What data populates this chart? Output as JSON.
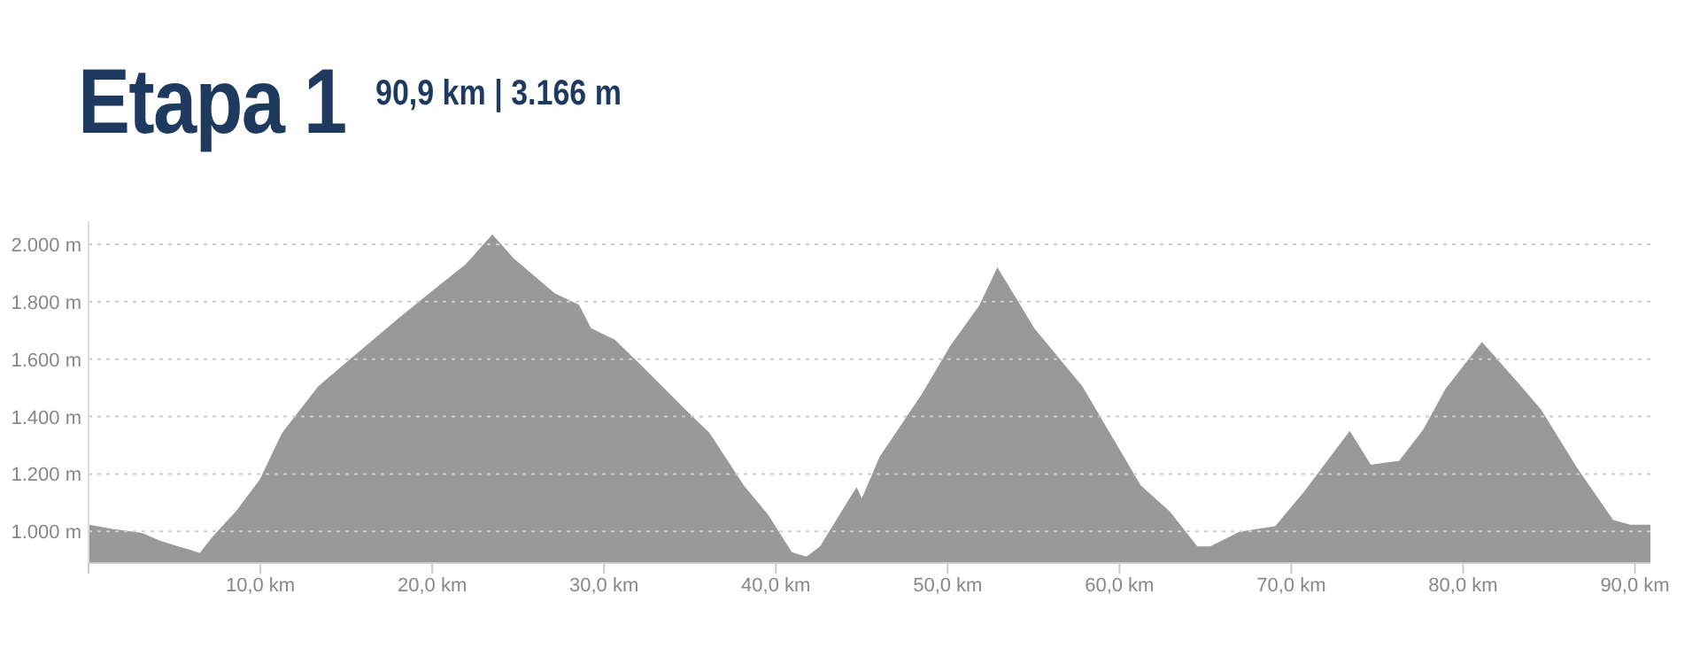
{
  "chart_data": {
    "type": "area",
    "title": "Etapa 1",
    "subtitle": "90,9 km | 3.166 m",
    "x": [
      0,
      1.4,
      3.1,
      4.1,
      5.2,
      5.8,
      6.5,
      7.2,
      8.6,
      10.0,
      11.3,
      13.4,
      14.8,
      16.2,
      18.2,
      20.3,
      22.0,
      23.5,
      24.7,
      27.1,
      28.5,
      29.2,
      30.6,
      32.0,
      34.7,
      36.1,
      38.1,
      39.5,
      40.9,
      41.8,
      42.6,
      44.3,
      44.7,
      45.0,
      46.1,
      48.5,
      50.2,
      51.9,
      52.9,
      55.0,
      57.8,
      61.2,
      62.9,
      64.5,
      65.3,
      67.0,
      69.1,
      70.8,
      73.4,
      74.6,
      76.3,
      77.7,
      79.0,
      81.1,
      83.2,
      84.5,
      86.6,
      88.7,
      89.7,
      90.9
    ],
    "series": [
      {
        "color": "#999999",
        "values": [
          1020,
          1006,
          992,
          966,
          945,
          935,
          921,
          976,
          1067,
          1178,
          1341,
          1503,
          1574,
          1645,
          1746,
          1848,
          1929,
          2030,
          1949,
          1827,
          1787,
          1706,
          1665,
          1584,
          1422,
          1341,
          1158,
          1057,
          925,
          909,
          945,
          1110,
          1148,
          1107,
          1260,
          1473,
          1645,
          1787,
          1913,
          1706,
          1503,
          1158,
          1067,
          945,
          945,
          996,
          1016,
          1138,
          1345,
          1229,
          1243,
          1351,
          1493,
          1655,
          1513,
          1422,
          1219,
          1037,
          1020,
          1020
        ]
      }
    ],
    "xlim": [
      0,
      90.9
    ],
    "xticks": [
      {
        "value": 0,
        "label": null
      },
      {
        "value": 10,
        "label": "10,0 km"
      },
      {
        "value": 20,
        "label": "20,0 km"
      },
      {
        "value": 30,
        "label": "30,0 km"
      },
      {
        "value": 40,
        "label": "40,0 km"
      },
      {
        "value": 50,
        "label": "50,0 km"
      },
      {
        "value": 60,
        "label": "60,0 km"
      },
      {
        "value": 70,
        "label": "70,0 km"
      },
      {
        "value": 80,
        "label": "80,0 km"
      },
      {
        "value": 90,
        "label": "90,0 km"
      }
    ],
    "ylim": [
      890,
      2080
    ],
    "yticks": [
      {
        "value": 1000,
        "label": "1.000 m"
      },
      {
        "value": 1200,
        "label": "1.200 m"
      },
      {
        "value": 1400,
        "label": "1.400 m"
      },
      {
        "value": 1600,
        "label": "1.600 m"
      },
      {
        "value": 1800,
        "label": "1.800 m"
      },
      {
        "value": 2000,
        "label": "2.000 m"
      }
    ],
    "grid": "y"
  }
}
